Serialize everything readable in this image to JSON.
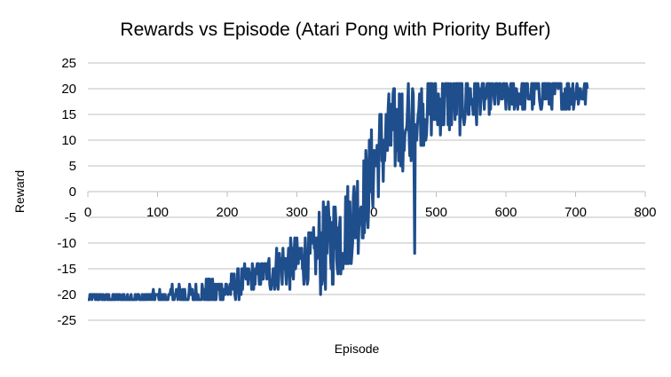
{
  "chart_data": {
    "type": "line",
    "title": "Rewards vs Episode (Atari Pong with Priority Buffer)",
    "xlabel": "Episode",
    "ylabel": "Reward",
    "xlim": [
      0,
      800
    ],
    "ylim": [
      -25,
      25
    ],
    "xticks": [
      0,
      100,
      200,
      300,
      400,
      500,
      600,
      700,
      800
    ],
    "yticks": [
      -25,
      -20,
      -15,
      -10,
      -5,
      0,
      5,
      10,
      15,
      20,
      25
    ],
    "grid": true,
    "legend": "none",
    "series": [
      {
        "color": "#1f4e8c",
        "keypoints": [
          [
            0,
            -21
          ],
          [
            20,
            -20.5
          ],
          [
            50,
            -20.8
          ],
          [
            100,
            -20.5
          ],
          [
            150,
            -20.5
          ],
          [
            200,
            -19
          ],
          [
            230,
            -17
          ],
          [
            260,
            -15.5
          ],
          [
            290,
            -14
          ],
          [
            320,
            -12.5
          ],
          [
            340,
            -11
          ],
          [
            360,
            -8.5
          ],
          [
            380,
            -5
          ],
          [
            400,
            0
          ],
          [
            410,
            5
          ],
          [
            420,
            8
          ],
          [
            430,
            10
          ],
          [
            450,
            13
          ],
          [
            470,
            15
          ],
          [
            500,
            17
          ],
          [
            550,
            18.5
          ],
          [
            600,
            19
          ],
          [
            650,
            19.5
          ],
          [
            700,
            19.5
          ],
          [
            718,
            19.5
          ]
        ],
        "count": 718
      }
    ]
  }
}
